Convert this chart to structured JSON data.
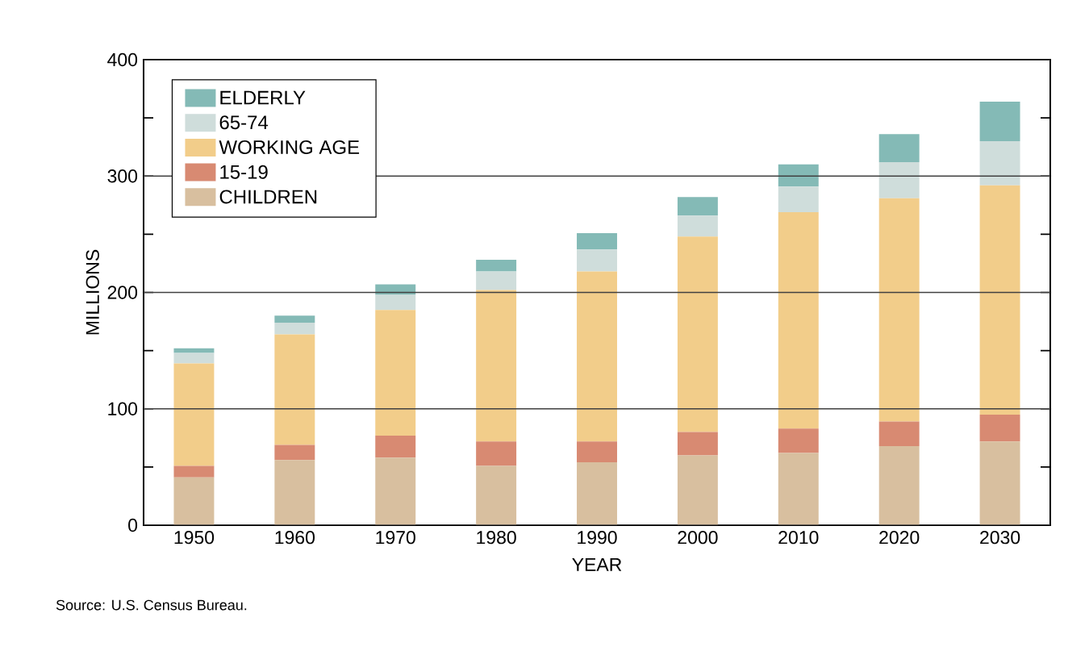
{
  "chart_data": {
    "type": "bar",
    "stacked": true,
    "xlabel": "YEAR",
    "ylabel": "MILLIONS",
    "categories": [
      "1950",
      "1960",
      "1970",
      "1980",
      "1990",
      "2000",
      "2010",
      "2020",
      "2030"
    ],
    "series": [
      {
        "name": "CHILDREN",
        "color": "#d8bf9f",
        "values": [
          41,
          56,
          58,
          51,
          54,
          60,
          62,
          68,
          72
        ]
      },
      {
        "name": "15-19",
        "color": "#d88a72",
        "values": [
          10,
          13,
          19,
          21,
          18,
          20,
          21,
          21,
          23
        ]
      },
      {
        "name": "WORKING AGE",
        "color": "#f2cd8a",
        "values": [
          88,
          95,
          108,
          130,
          146,
          168,
          186,
          192,
          197
        ]
      },
      {
        "name": "65-74",
        "color": "#cfdddb",
        "values": [
          9,
          10,
          13,
          16,
          19,
          18,
          22,
          31,
          38
        ]
      },
      {
        "name": "ELDERLY",
        "color": "#84bab6",
        "values": [
          4,
          6,
          9,
          10,
          14,
          16,
          19,
          24,
          34
        ]
      }
    ],
    "ylim": [
      0,
      400
    ],
    "yticks": [
      0,
      {
        "value": 50,
        "label": null
      },
      100,
      {
        "value": 150,
        "label": null
      },
      200,
      {
        "value": 250,
        "label": null
      },
      300,
      {
        "value": 350,
        "label": null
      },
      400
    ],
    "grid": "y",
    "legend": "top left",
    "annotations": [
      "Source:  U.S. Census Bureau."
    ]
  }
}
